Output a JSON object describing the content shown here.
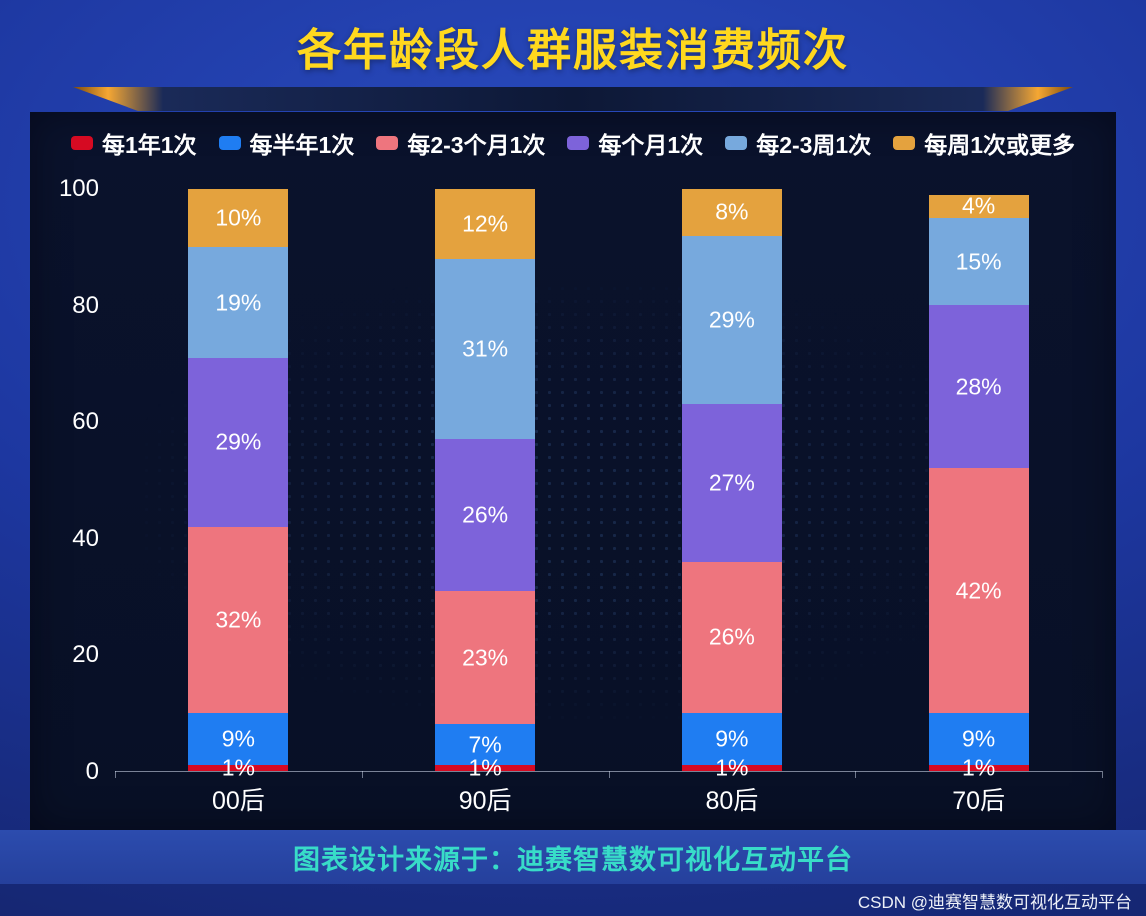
{
  "header": {
    "title": "各年龄段人群服装消费频次"
  },
  "colors": {
    "title-color": "#ffd81e",
    "footer-text-color": "#38dcc8",
    "panel-bg": "#0a122c",
    "band-bg": "#2c4cae",
    "accent-orange": "#f5a733"
  },
  "chart_data": {
    "type": "bar",
    "stacked": true,
    "title": "各年龄段人群服装消费频次",
    "categories": [
      "00后",
      "90后",
      "80后",
      "70后"
    ],
    "series": [
      {
        "name": "每1年1次",
        "color": "#d60a22",
        "values": [
          1,
          1,
          1,
          1
        ]
      },
      {
        "name": "每半年1次",
        "color": "#1f7df2",
        "values": [
          9,
          7,
          9,
          9
        ]
      },
      {
        "name": "每2-3个月1次",
        "color": "#ee757e",
        "values": [
          32,
          23,
          26,
          42
        ]
      },
      {
        "name": "每个月1次",
        "color": "#7d63da",
        "values": [
          29,
          26,
          27,
          28
        ]
      },
      {
        "name": "每2-3周1次",
        "color": "#77a9dd",
        "values": [
          19,
          31,
          29,
          15
        ]
      },
      {
        "name": "每周1次或更多",
        "color": "#e4a23e",
        "values": [
          10,
          12,
          8,
          4
        ]
      }
    ],
    "ylim": [
      0,
      100
    ],
    "yticks": [
      0,
      20,
      40,
      60,
      80,
      100
    ],
    "value_suffix": "%",
    "legend_position": "top",
    "grid": false
  },
  "footer": {
    "credit": "图表设计来源于：迪赛智慧数可视化互动平台",
    "watermark": "CSDN @迪赛智慧数可视化互动平台"
  }
}
